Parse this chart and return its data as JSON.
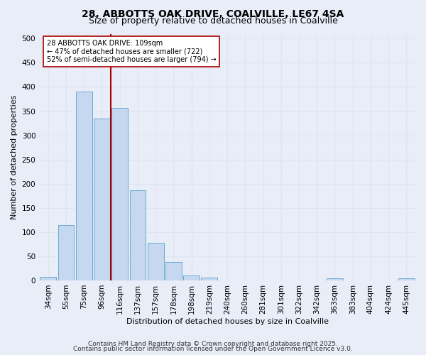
{
  "title1": "28, ABBOTTS OAK DRIVE, COALVILLE, LE67 4SA",
  "title2": "Size of property relative to detached houses in Coalville",
  "xlabel": "Distribution of detached houses by size in Coalville",
  "ylabel": "Number of detached properties",
  "bins": [
    "34sqm",
    "55sqm",
    "75sqm",
    "96sqm",
    "116sqm",
    "137sqm",
    "157sqm",
    "178sqm",
    "198sqm",
    "219sqm",
    "240sqm",
    "260sqm",
    "281sqm",
    "301sqm",
    "322sqm",
    "342sqm",
    "363sqm",
    "383sqm",
    "404sqm",
    "424sqm",
    "445sqm"
  ],
  "values": [
    8,
    115,
    390,
    335,
    357,
    187,
    78,
    38,
    10,
    6,
    0,
    0,
    0,
    0,
    0,
    0,
    5,
    0,
    0,
    0,
    4
  ],
  "bar_color": "#c5d8f0",
  "bar_edge_color": "#6aaad4",
  "vline_x": 3.5,
  "vline_color": "#aa0000",
  "annotation_text": "28 ABBOTTS OAK DRIVE: 109sqm\n← 47% of detached houses are smaller (722)\n52% of semi-detached houses are larger (794) →",
  "annotation_box_color": "#ffffff",
  "annotation_box_edge": "#aa0000",
  "ylim": [
    0,
    510
  ],
  "yticks": [
    0,
    50,
    100,
    150,
    200,
    250,
    300,
    350,
    400,
    450,
    500
  ],
  "grid_color": "#dde5f0",
  "background_color": "#e8edf8",
  "footer1": "Contains HM Land Registry data © Crown copyright and database right 2025.",
  "footer2": "Contains public sector information licensed under the Open Government Licence v3.0.",
  "title1_fontsize": 10,
  "title2_fontsize": 9,
  "axis_fontsize": 8,
  "tick_fontsize": 7.5,
  "footer_fontsize": 6.5
}
